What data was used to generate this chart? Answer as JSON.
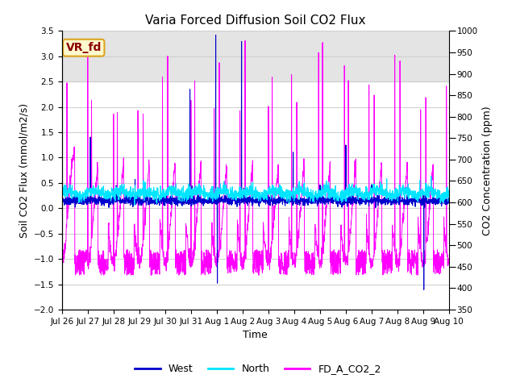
{
  "title": "Varia Forced Diffusion Soil CO2 Flux",
  "xlabel": "Time",
  "ylabel_left": "Soil CO2 Flux (mmol/m2/s)",
  "ylabel_right": "CO2 Concentration (ppm)",
  "ylim_left": [
    -2.0,
    3.5
  ],
  "ylim_right": [
    350,
    1000
  ],
  "xtick_labels": [
    "Jul 26",
    "Jul 27",
    "Jul 28",
    "Jul 29",
    "Jul 30",
    "Jul 31",
    "Aug 1",
    "Aug 2",
    "Aug 3",
    "Aug 4",
    "Aug 5",
    "Aug 6",
    "Aug 7",
    "Aug 8",
    "Aug 9",
    "Aug 10"
  ],
  "xtick_positions": [
    0,
    24,
    48,
    72,
    96,
    120,
    144,
    168,
    192,
    216,
    240,
    264,
    288,
    312,
    336,
    360
  ],
  "west_color": "#0000cd",
  "north_color": "#00e5ff",
  "co2_color": "#ff00ff",
  "shaded_ymin": 2.5,
  "shaded_ymax": 3.5,
  "shaded_color": "#d3d3d3",
  "legend_items": [
    "West",
    "North",
    "FD_A_CO2_2"
  ],
  "annotation_text": "VR_fd",
  "annotation_facecolor": "#fffacd",
  "annotation_edgecolor": "#daa520",
  "annotation_textcolor": "#8b0000",
  "background_color": "#ffffff",
  "grid_color": "#d0d0d0",
  "title_fontsize": 11,
  "axis_fontsize": 9,
  "tick_fontsize": 7.5,
  "legend_fontsize": 9,
  "n_points": 3600,
  "figwidth": 6.4,
  "figheight": 4.8,
  "dpi": 100
}
